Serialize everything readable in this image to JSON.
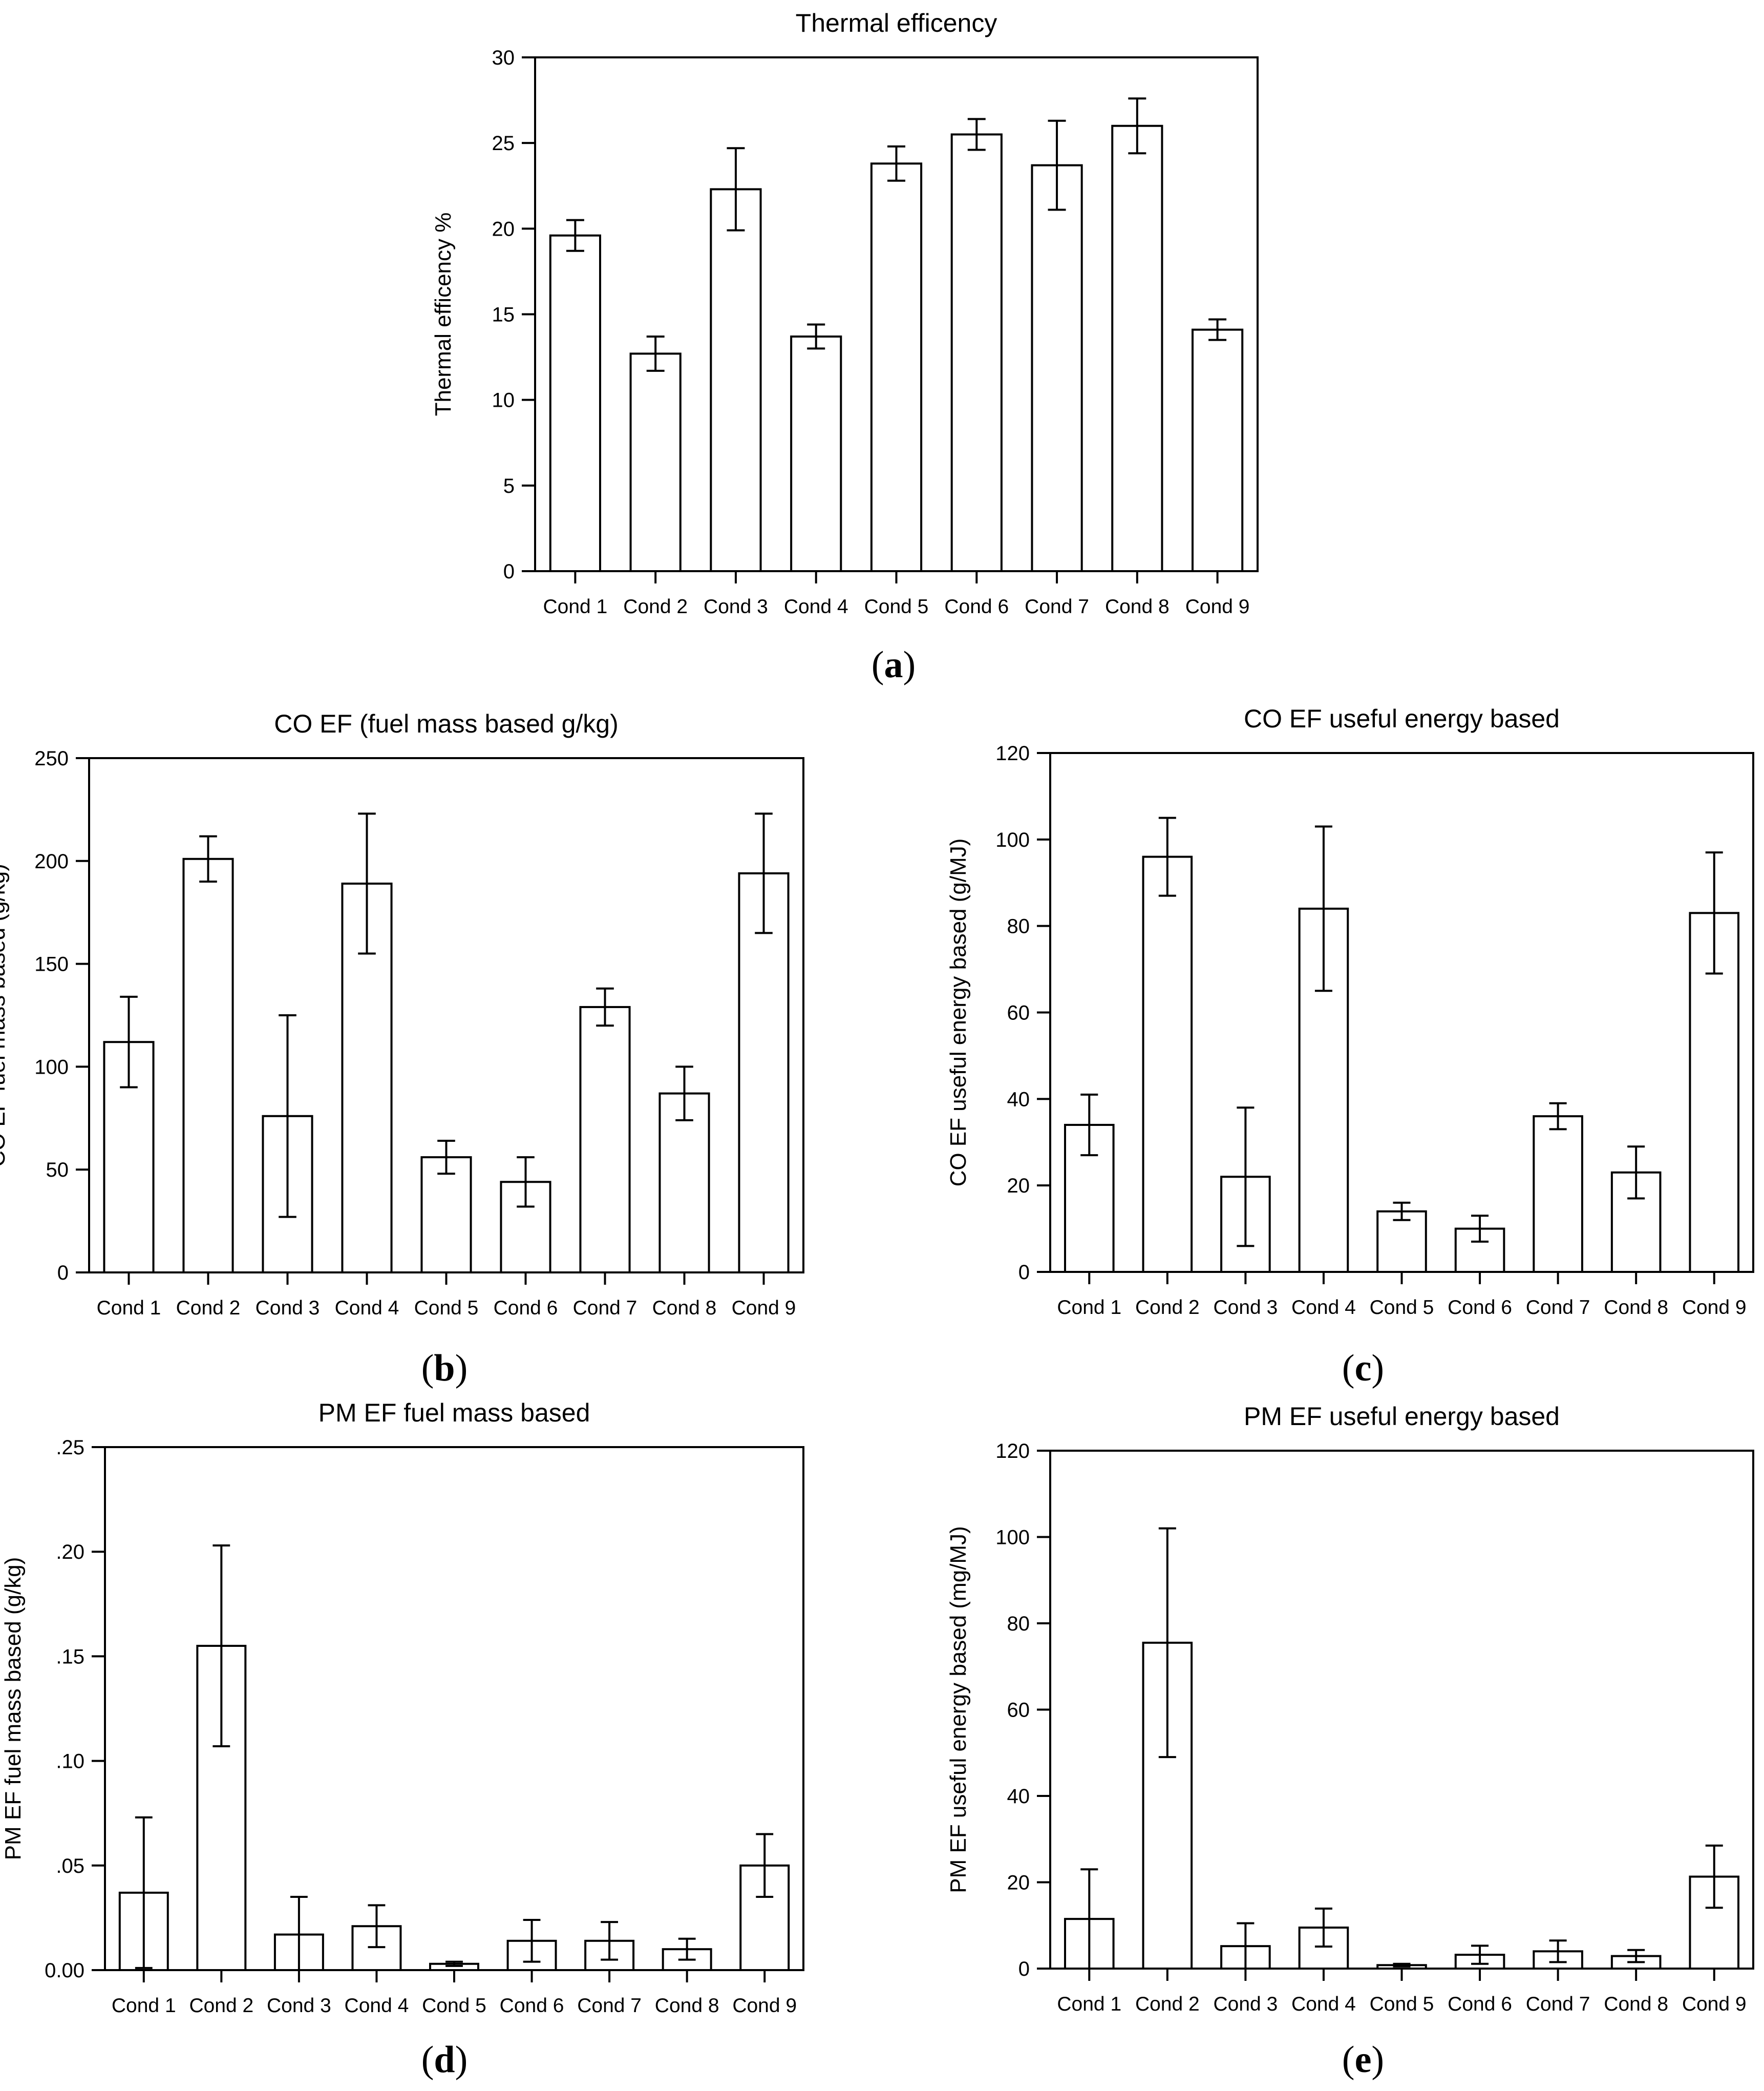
{
  "chart_data": [
    {
      "type": "bar",
      "panel": "(a)",
      "title": "Thermal efficency",
      "xlabel": "",
      "ylabel": "Thermal efficency %",
      "categories": [
        "Cond 1",
        "Cond 2",
        "Cond 3",
        "Cond 4",
        "Cond 5",
        "Cond 6",
        "Cond 7",
        "Cond 8",
        "Cond 9"
      ],
      "values": [
        19.6,
        12.7,
        22.3,
        13.7,
        23.8,
        25.5,
        23.7,
        26.0,
        14.1
      ],
      "errors": [
        0.9,
        1.0,
        2.4,
        0.7,
        1.0,
        0.9,
        2.6,
        1.6,
        0.6
      ],
      "ylim": [
        0,
        30
      ],
      "yticks": [
        0,
        5,
        10,
        15,
        20,
        25,
        30
      ],
      "ytick_labels": [
        "0",
        "5",
        "10",
        "15",
        "20",
        "25",
        "30"
      ]
    },
    {
      "type": "bar",
      "panel": "(b)",
      "title": "CO EF (fuel mass based g/kg)",
      "xlabel": "",
      "ylabel": "CO EF fuel mass based (g/kg)",
      "categories": [
        "Cond 1",
        "Cond 2",
        "Cond 3",
        "Cond 4",
        "Cond 5",
        "Cond 6",
        "Cond 7",
        "Cond 8",
        "Cond 9"
      ],
      "values": [
        112,
        201,
        76,
        189,
        56,
        44,
        129,
        87,
        194
      ],
      "errors": [
        22,
        11,
        49,
        34,
        8,
        12,
        9,
        13,
        29
      ],
      "ylim": [
        0,
        250
      ],
      "yticks": [
        0,
        50,
        100,
        150,
        200,
        250
      ],
      "ytick_labels": [
        "0",
        "50",
        "100",
        "150",
        "200",
        "250"
      ]
    },
    {
      "type": "bar",
      "panel": "(c)",
      "title": "CO EF useful energy based",
      "xlabel": "",
      "ylabel": "CO EF useful energy based (g/MJ)",
      "categories": [
        "Cond 1",
        "Cond 2",
        "Cond 3",
        "Cond 4",
        "Cond 5",
        "Cond 6",
        "Cond 7",
        "Cond 8",
        "Cond 9"
      ],
      "values": [
        34,
        96,
        22,
        84,
        14,
        10,
        36,
        23,
        83
      ],
      "errors": [
        7,
        9,
        16,
        19,
        2,
        3,
        3,
        6,
        14
      ],
      "ylim": [
        0,
        120
      ],
      "yticks": [
        0,
        20,
        40,
        60,
        80,
        100,
        120
      ],
      "ytick_labels": [
        "0",
        "20",
        "40",
        "60",
        "80",
        "100",
        "120"
      ]
    },
    {
      "type": "bar",
      "panel": "(d)",
      "title": "PM EF fuel mass based",
      "xlabel": "",
      "ylabel": "PM EF fuel mass based (g/kg)",
      "categories": [
        "Cond 1",
        "Cond 2",
        "Cond 3",
        "Cond 4",
        "Cond 5",
        "Cond 6",
        "Cond 7",
        "Cond 8",
        "Cond 9"
      ],
      "values": [
        0.037,
        0.155,
        0.017,
        0.021,
        0.003,
        0.014,
        0.014,
        0.01,
        0.05
      ],
      "errors": [
        0.036,
        0.048,
        0.018,
        0.01,
        0.001,
        0.01,
        0.009,
        0.005,
        0.015
      ],
      "ylim": [
        0,
        0.25
      ],
      "yticks": [
        0,
        0.05,
        0.1,
        0.15,
        0.2,
        0.25
      ],
      "ytick_labels": [
        "0.00",
        ".05",
        ".10",
        ".15",
        ".20",
        ".25"
      ]
    },
    {
      "type": "bar",
      "panel": "(e)",
      "title": "PM EF useful energy based",
      "xlabel": "",
      "ylabel": "PM EF useful energy based (mg/MJ)",
      "categories": [
        "Cond 1",
        "Cond 2",
        "Cond 3",
        "Cond 4",
        "Cond 5",
        "Cond 6",
        "Cond 7",
        "Cond 8",
        "Cond 9"
      ],
      "values": [
        11.5,
        75.5,
        5.2,
        9.5,
        0.8,
        3.2,
        4.0,
        2.9,
        21.3
      ],
      "errors": [
        11.5,
        26.5,
        5.3,
        4.4,
        0.3,
        2.1,
        2.5,
        1.4,
        7.2
      ],
      "ylim": [
        0,
        120
      ],
      "yticks": [
        0,
        20,
        40,
        60,
        80,
        100,
        120
      ],
      "ytick_labels": [
        "0",
        "20",
        "40",
        "60",
        "80",
        "100",
        "120"
      ]
    }
  ]
}
